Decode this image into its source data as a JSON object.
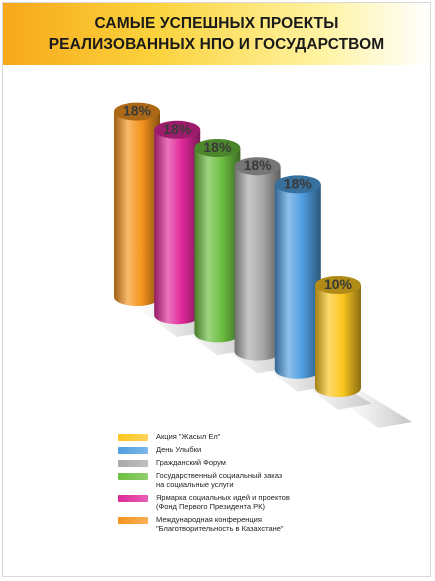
{
  "chart_data": {
    "type": "bar",
    "title_lines": [
      "САМЫЕ УСПЕШНЫХ ПРОЕКТЫ",
      "РЕАЛИЗОВАННЫХ НПО И ГОСУДАРСТВОМ"
    ],
    "ylim": [
      0,
      20
    ],
    "grid": false,
    "legend_position": "bottom",
    "series": [
      {
        "name": "Международная конференция\n\"Благотворительность в Казахстане\"",
        "value": 18,
        "label": "18%",
        "color": "#f5941d"
      },
      {
        "name": "Ярмарка социальных идей и проектов\n(Фонд Первого Президента РК)",
        "value": 18,
        "label": "18%",
        "color": "#e0299a"
      },
      {
        "name": "Государственный социальный заказ\nна социальные услуги",
        "value": 18,
        "label": "18%",
        "color": "#6cbf3f"
      },
      {
        "name": "Гражданский Форум",
        "value": 18,
        "label": "18%",
        "color": "#a9a9a9"
      },
      {
        "name": "День Улыбки",
        "value": 18,
        "label": "18%",
        "color": "#4f9ee0"
      },
      {
        "name": "Акция \"Жасыл Ел\"",
        "value": 10,
        "label": "10%",
        "color": "#fbc61e"
      }
    ],
    "legend_order": [
      5,
      4,
      3,
      2,
      1,
      0
    ]
  }
}
